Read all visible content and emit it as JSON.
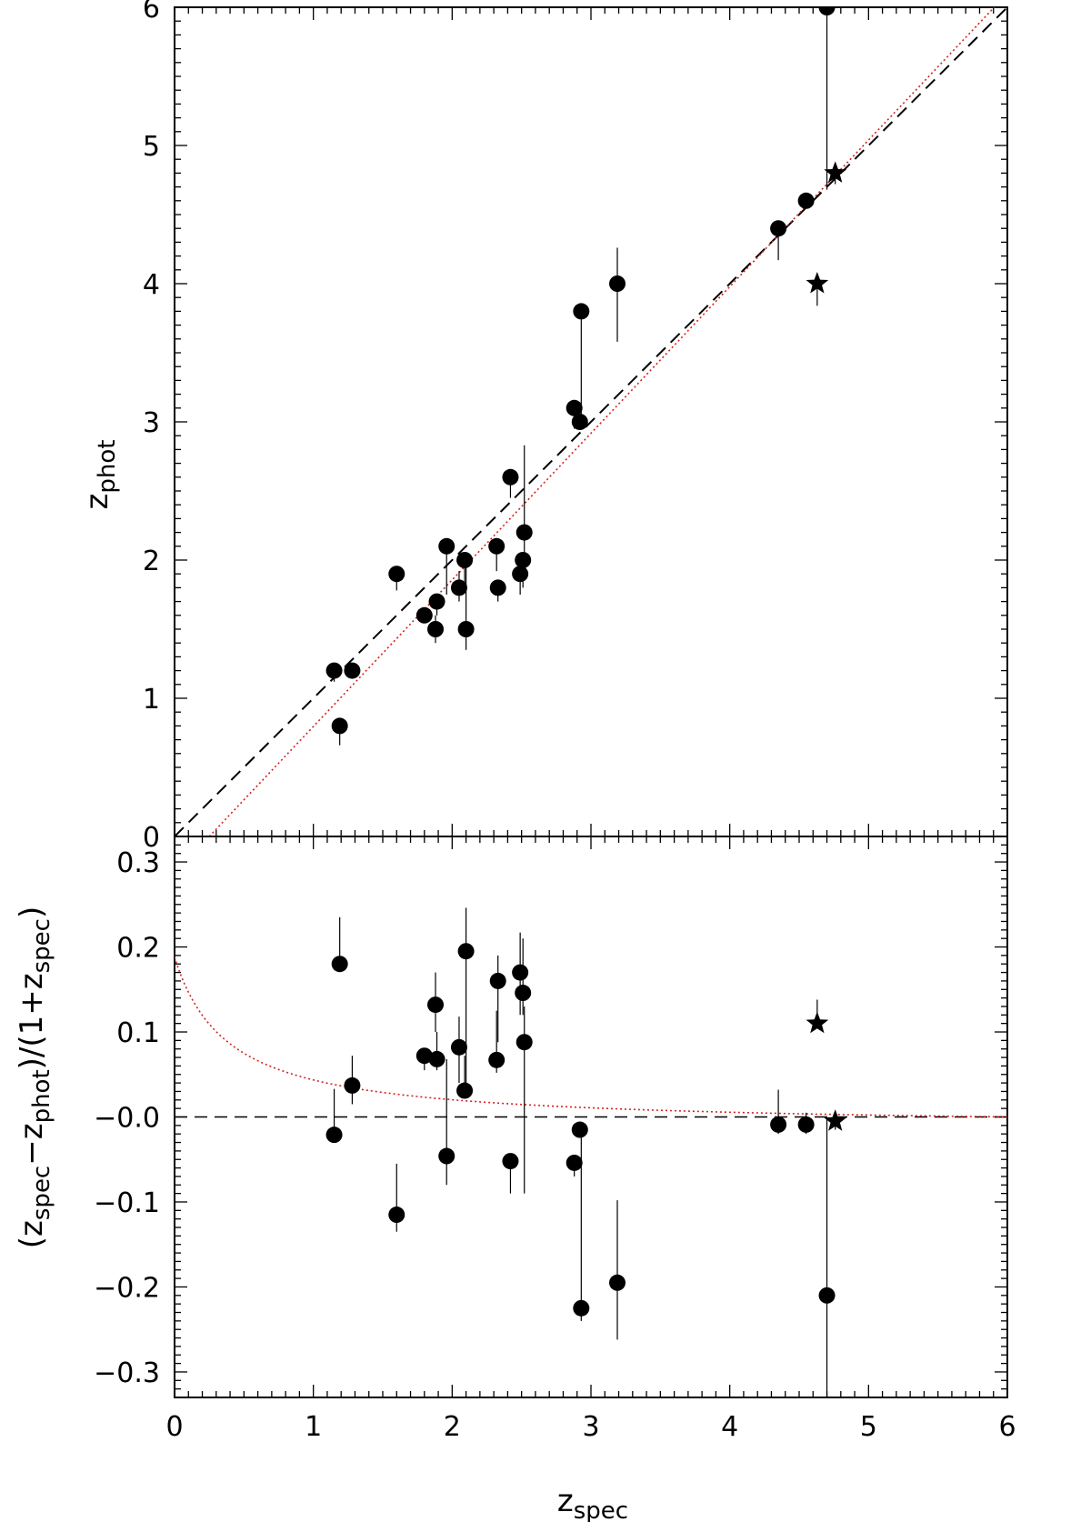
{
  "chart_data": [
    {
      "type": "scatter",
      "panel": "top",
      "xlabel": "z",
      "xlabel_sub": "spec",
      "ylabel": "z",
      "ylabel_sub": "phot",
      "xlim": [
        0,
        6
      ],
      "ylim": [
        0,
        6
      ],
      "xticks": [
        "0",
        "1",
        "2",
        "3",
        "4",
        "5",
        "6"
      ],
      "yticks": [
        "0",
        "1",
        "2",
        "3",
        "4",
        "5",
        "6"
      ],
      "reference_line": {
        "style": "dashed",
        "color": "#000000",
        "from": [
          0,
          0
        ],
        "to": [
          6,
          6
        ]
      },
      "fit_line": {
        "style": "dotted",
        "color": "#d62020",
        "from": [
          0.25,
          0
        ],
        "to": [
          6,
          6.1
        ]
      },
      "series": [
        {
          "marker": "circle",
          "points": [
            {
              "x": 1.15,
              "y": 1.2,
              "lo": 1.12,
              "hi": 1.2
            },
            {
              "x": 1.19,
              "y": 0.8,
              "lo": 0.66,
              "hi": 0.8
            },
            {
              "x": 1.28,
              "y": 1.2,
              "lo": 1.2,
              "hi": 1.2
            },
            {
              "x": 1.6,
              "y": 1.9,
              "lo": 1.78,
              "hi": 1.9
            },
            {
              "x": 1.8,
              "y": 1.6,
              "lo": 1.55,
              "hi": 1.6
            },
            {
              "x": 1.88,
              "y": 1.5,
              "lo": 1.4,
              "hi": 1.6
            },
            {
              "x": 1.89,
              "y": 1.7,
              "lo": 1.6,
              "hi": 1.75
            },
            {
              "x": 1.96,
              "y": 2.1,
              "lo": 1.75,
              "hi": 2.1
            },
            {
              "x": 2.05,
              "y": 1.8,
              "lo": 1.7,
              "hi": 1.92
            },
            {
              "x": 2.09,
              "y": 2.0,
              "lo": 1.82,
              "hi": 2.02
            },
            {
              "x": 2.1,
              "y": 1.5,
              "lo": 1.35,
              "hi": 2.0
            },
            {
              "x": 2.32,
              "y": 2.1,
              "lo": 1.92,
              "hi": 2.15
            },
            {
              "x": 2.33,
              "y": 1.8,
              "lo": 1.7,
              "hi": 1.8
            },
            {
              "x": 2.42,
              "y": 2.6,
              "lo": 2.45,
              "hi": 2.6
            },
            {
              "x": 2.49,
              "y": 1.9,
              "lo": 1.75,
              "hi": 1.95
            },
            {
              "x": 2.51,
              "y": 2.0,
              "lo": 1.8,
              "hi": 2.05
            },
            {
              "x": 2.52,
              "y": 2.2,
              "lo": 2.05,
              "hi": 2.83
            },
            {
              "x": 2.88,
              "y": 3.1,
              "lo": 2.95,
              "hi": 3.1
            },
            {
              "x": 2.92,
              "y": 3.0,
              "lo": 2.98,
              "hi": 3.0
            },
            {
              "x": 2.93,
              "y": 3.8,
              "lo": 3.0,
              "hi": 3.85
            },
            {
              "x": 3.19,
              "y": 4.0,
              "lo": 3.58,
              "hi": 4.26
            },
            {
              "x": 4.35,
              "y": 4.4,
              "lo": 4.17,
              "hi": 4.45
            },
            {
              "x": 4.55,
              "y": 4.6,
              "lo": 4.55,
              "hi": 4.65
            },
            {
              "x": 4.7,
              "y": 6.0,
              "lo": 4.68,
              "hi": 6.0
            }
          ]
        },
        {
          "marker": "star",
          "points": [
            {
              "x": 4.63,
              "y": 4.0,
              "lo": 3.84,
              "hi": 4.0
            },
            {
              "x": 4.76,
              "y": 4.8,
              "lo": 4.72,
              "hi": 4.85
            }
          ]
        }
      ]
    },
    {
      "type": "scatter",
      "panel": "bottom",
      "xlabel": "z",
      "xlabel_sub": "spec",
      "ylabel_parts": [
        "(z",
        "spec",
        "−z",
        "phot",
        ")/(1+z",
        "spec",
        ")"
      ],
      "xlim": [
        0,
        6
      ],
      "ylim": [
        -0.33,
        0.33
      ],
      "xticks": [
        "0",
        "1",
        "2",
        "3",
        "4",
        "5",
        "6"
      ],
      "yticks": [
        "0.3",
        "0.2",
        "0.1",
        "−0.0",
        "−0.1",
        "−0.2",
        "−0.3"
      ],
      "ytick_values": [
        0.3,
        0.2,
        0.1,
        0.0,
        -0.1,
        -0.2,
        -0.3
      ],
      "reference_line": {
        "style": "dashed",
        "color": "#000000",
        "y": 0.0
      },
      "fit_curve": {
        "style": "dotted",
        "color": "#d62020",
        "formula": "0.2/(1+2.6*z) - 0.012"
      },
      "series": [
        {
          "marker": "circle",
          "points": [
            {
              "x": 1.15,
              "y": -0.021,
              "lo": -0.021,
              "hi": 0.033
            },
            {
              "x": 1.19,
              "y": 0.18,
              "lo": 0.18,
              "hi": 0.235
            },
            {
              "x": 1.28,
              "y": 0.037,
              "lo": 0.015,
              "hi": 0.072
            },
            {
              "x": 1.6,
              "y": -0.115,
              "lo": -0.135,
              "hi": -0.055
            },
            {
              "x": 1.8,
              "y": 0.072,
              "lo": 0.055,
              "hi": 0.072
            },
            {
              "x": 1.88,
              "y": 0.132,
              "lo": 0.1,
              "hi": 0.17
            },
            {
              "x": 1.89,
              "y": 0.068,
              "lo": 0.055,
              "hi": 0.1
            },
            {
              "x": 1.96,
              "y": -0.046,
              "lo": -0.08,
              "hi": 0.068
            },
            {
              "x": 2.05,
              "y": 0.082,
              "lo": 0.04,
              "hi": 0.118
            },
            {
              "x": 2.09,
              "y": 0.031,
              "lo": 0.022,
              "hi": 0.072
            },
            {
              "x": 2.1,
              "y": 0.195,
              "lo": 0.04,
              "hi": 0.246
            },
            {
              "x": 2.32,
              "y": 0.067,
              "lo": 0.052,
              "hi": 0.125
            },
            {
              "x": 2.33,
              "y": 0.16,
              "lo": 0.088,
              "hi": 0.19
            },
            {
              "x": 2.42,
              "y": -0.052,
              "lo": -0.09,
              "hi": -0.052
            },
            {
              "x": 2.49,
              "y": 0.17,
              "lo": 0.12,
              "hi": 0.217
            },
            {
              "x": 2.51,
              "y": 0.146,
              "lo": 0.12,
              "hi": 0.21
            },
            {
              "x": 2.52,
              "y": 0.088,
              "lo": -0.09,
              "hi": 0.13
            },
            {
              "x": 2.88,
              "y": -0.054,
              "lo": -0.07,
              "hi": -0.054
            },
            {
              "x": 2.92,
              "y": -0.015,
              "lo": -0.02,
              "hi": -0.015
            },
            {
              "x": 2.93,
              "y": -0.225,
              "lo": -0.24,
              "hi": -0.02
            },
            {
              "x": 3.19,
              "y": -0.195,
              "lo": -0.262,
              "hi": -0.098
            },
            {
              "x": 4.35,
              "y": -0.009,
              "lo": -0.02,
              "hi": 0.032
            },
            {
              "x": 4.55,
              "y": -0.009,
              "lo": -0.02,
              "hi": 0.005
            },
            {
              "x": 4.7,
              "y": -0.21,
              "lo": -0.33,
              "hi": 0.0
            }
          ]
        },
        {
          "marker": "star",
          "points": [
            {
              "x": 4.63,
              "y": 0.11,
              "lo": 0.11,
              "hi": 0.138
            },
            {
              "x": 4.76,
              "y": -0.005,
              "lo": -0.015,
              "hi": 0.005
            }
          ]
        }
      ]
    }
  ]
}
